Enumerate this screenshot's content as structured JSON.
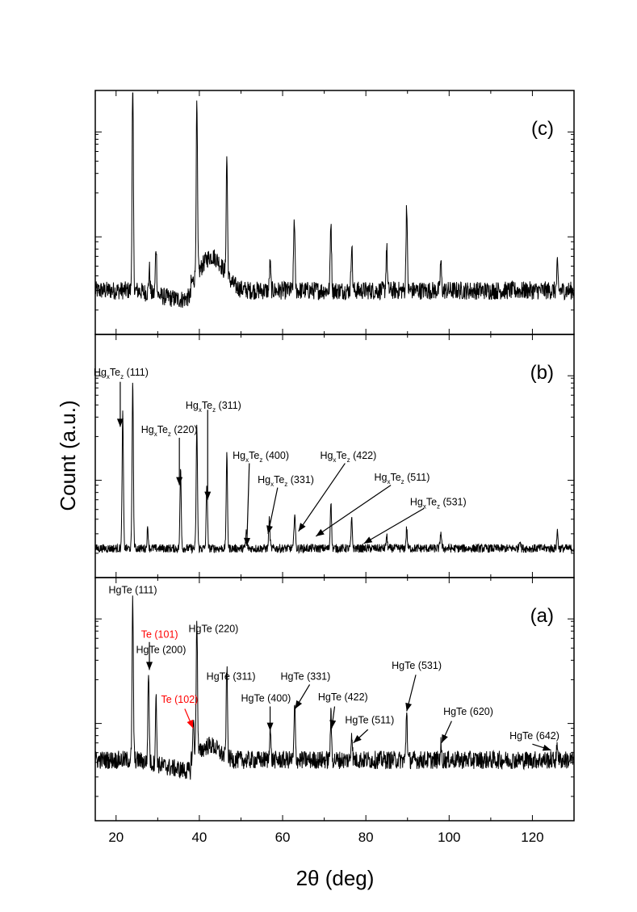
{
  "chart_data": {
    "type": "line",
    "title": "",
    "xlabel": "2θ (deg)",
    "ylabel": "Count (a.u.)",
    "xlim": [
      15,
      130
    ],
    "x_ticks": [
      20,
      40,
      60,
      80,
      100,
      120
    ],
    "x_tick_labels": [
      "20",
      "40",
      "60",
      "80",
      "100",
      "120"
    ],
    "panels": [
      {
        "id": "c",
        "label": "(c)",
        "baseline": 0.18,
        "peaks": [
          {
            "x": 24.0,
            "h": 0.9
          },
          {
            "x": 28.0,
            "h": 0.1
          },
          {
            "x": 29.6,
            "h": 0.2
          },
          {
            "x": 39.4,
            "h": 0.7
          },
          {
            "x": 46.6,
            "h": 0.49
          },
          {
            "x": 57.0,
            "h": 0.11
          },
          {
            "x": 62.8,
            "h": 0.3
          },
          {
            "x": 71.6,
            "h": 0.29
          },
          {
            "x": 76.6,
            "h": 0.2
          },
          {
            "x": 85.0,
            "h": 0.18
          },
          {
            "x": 89.8,
            "h": 0.36
          },
          {
            "x": 98.0,
            "h": 0.12
          },
          {
            "x": 126.0,
            "h": 0.1
          }
        ],
        "humps": [
          {
            "x": 43.0,
            "h": 0.14,
            "w": 4.0
          }
        ],
        "labels": [],
        "arrows": []
      },
      {
        "id": "b",
        "label": "(b)",
        "baseline": 0.12,
        "peaks": [
          {
            "x": 21.6,
            "h": 0.55
          },
          {
            "x": 24.0,
            "h": 0.7
          },
          {
            "x": 27.6,
            "h": 0.08
          },
          {
            "x": 35.5,
            "h": 0.33
          },
          {
            "x": 39.4,
            "h": 0.5
          },
          {
            "x": 41.8,
            "h": 0.27
          },
          {
            "x": 46.6,
            "h": 0.38
          },
          {
            "x": 51.3,
            "h": 0.07
          },
          {
            "x": 56.8,
            "h": 0.12
          },
          {
            "x": 62.9,
            "h": 0.15
          },
          {
            "x": 71.6,
            "h": 0.2
          },
          {
            "x": 76.6,
            "h": 0.12
          },
          {
            "x": 85.0,
            "h": 0.05
          },
          {
            "x": 89.8,
            "h": 0.08
          },
          {
            "x": 98.0,
            "h": 0.07
          },
          {
            "x": 117.0,
            "h": 0.04
          },
          {
            "x": 126.0,
            "h": 0.07
          }
        ],
        "humps": [],
        "labels": [
          {
            "text": "Hg",
            "sub1": "x",
            "mid": "Te",
            "sub2": "z",
            "tail": " (111)",
            "x": 14.6,
            "y": 0.83
          },
          {
            "text": "Hg",
            "sub1": "x",
            "mid": "Te",
            "sub2": "z",
            "tail": " (220)",
            "x": 26.0,
            "y": 0.595
          },
          {
            "text": "Hg",
            "sub1": "x",
            "mid": "Te",
            "sub2": "z",
            "tail": " (311)",
            "x": 36.7,
            "y": 0.695
          },
          {
            "text": "Hg",
            "sub1": "x",
            "mid": "Te",
            "sub2": "z",
            "tail": " (400)",
            "x": 48.0,
            "y": 0.488
          },
          {
            "text": "Hg",
            "sub1": "x",
            "mid": "Te",
            "sub2": "z",
            "tail": " (331)",
            "x": 54.0,
            "y": 0.388
          },
          {
            "text": "Hg",
            "sub1": "x",
            "mid": "Te",
            "sub2": "z",
            "tail": " (422)",
            "x": 69.0,
            "y": 0.488
          },
          {
            "text": "Hg",
            "sub1": "x",
            "mid": "Te",
            "sub2": "z",
            "tail": " (511)",
            "x": 82.0,
            "y": 0.398
          },
          {
            "text": "Hg",
            "sub1": "x",
            "mid": "Te",
            "sub2": "z",
            "tail": " (531)",
            "x": 90.6,
            "y": 0.298
          }
        ],
        "arrows": [
          {
            "x1": 21.0,
            "y1": 0.805,
            "x2": 21.0,
            "y2": 0.62,
            "color": "#000000"
          },
          {
            "x1": 35.2,
            "y1": 0.575,
            "x2": 35.2,
            "y2": 0.38,
            "color": "#000000"
          },
          {
            "x1": 42.0,
            "y1": 0.69,
            "x2": 42.0,
            "y2": 0.32,
            "color": "#000000"
          },
          {
            "x1": 52.0,
            "y1": 0.47,
            "x2": 51.4,
            "y2": 0.13,
            "color": "#000000"
          },
          {
            "x1": 58.8,
            "y1": 0.37,
            "x2": 56.5,
            "y2": 0.18,
            "color": "#000000"
          },
          {
            "x1": 75.0,
            "y1": 0.47,
            "x2": 63.8,
            "y2": 0.19,
            "color": "#000000"
          },
          {
            "x1": 86.0,
            "y1": 0.38,
            "x2": 68.0,
            "y2": 0.17,
            "color": "#000000"
          },
          {
            "x1": 94.0,
            "y1": 0.285,
            "x2": 79.5,
            "y2": 0.14,
            "color": "#000000"
          }
        ]
      },
      {
        "id": "a",
        "label": "(a)",
        "baseline": 0.25,
        "peaks": [
          {
            "x": 24.0,
            "h": 0.67
          },
          {
            "x": 27.8,
            "h": 0.37
          },
          {
            "x": 29.6,
            "h": 0.27
          },
          {
            "x": 38.6,
            "h": 0.15
          },
          {
            "x": 39.4,
            "h": 0.57
          },
          {
            "x": 46.6,
            "h": 0.37
          },
          {
            "x": 57.0,
            "h": 0.14
          },
          {
            "x": 62.9,
            "h": 0.22
          },
          {
            "x": 71.6,
            "h": 0.18
          },
          {
            "x": 76.6,
            "h": 0.12
          },
          {
            "x": 89.8,
            "h": 0.21
          },
          {
            "x": 98.0,
            "h": 0.06
          },
          {
            "x": 126.0,
            "h": 0.07
          }
        ],
        "humps": [
          {
            "x": 42.5,
            "h": 0.06,
            "w": 3.0
          }
        ],
        "labels": [
          {
            "text": "HgTe (111)",
            "x": 18.2,
            "y": 0.935,
            "color": "#000000"
          },
          {
            "text": "Te (101)",
            "x": 26.0,
            "y": 0.752,
            "color": "#ff0000"
          },
          {
            "text": "HgTe (200)",
            "x": 24.8,
            "y": 0.69,
            "color": "#000000"
          },
          {
            "text": "HgTe (220)",
            "x": 37.4,
            "y": 0.775,
            "color": "#000000"
          },
          {
            "text": "Te (102)",
            "x": 30.8,
            "y": 0.485,
            "color": "#ff0000"
          },
          {
            "text": "HgTe (311)",
            "x": 41.7,
            "y": 0.58,
            "color": "#000000"
          },
          {
            "text": "HgTe (400)",
            "x": 50.0,
            "y": 0.49,
            "color": "#000000"
          },
          {
            "text": "HgTe (331)",
            "x": 59.5,
            "y": 0.58,
            "color": "#000000"
          },
          {
            "text": "HgTe (422)",
            "x": 68.5,
            "y": 0.495,
            "color": "#000000"
          },
          {
            "text": "HgTe (511)",
            "x": 75.0,
            "y": 0.4,
            "color": "#000000"
          },
          {
            "text": "HgTe (531)",
            "x": 86.2,
            "y": 0.625,
            "color": "#000000"
          },
          {
            "text": "HgTe (620)",
            "x": 98.6,
            "y": 0.435,
            "color": "#000000"
          },
          {
            "text": "HgTe (642)",
            "x": 114.5,
            "y": 0.335,
            "color": "#000000"
          }
        ],
        "arrows": [
          {
            "x1": 28.0,
            "y1": 0.735,
            "x2": 28.0,
            "y2": 0.62,
            "color": "#000000"
          },
          {
            "x1": 36.5,
            "y1": 0.46,
            "x2": 38.5,
            "y2": 0.38,
            "color": "#ff0000"
          },
          {
            "x1": 57.0,
            "y1": 0.47,
            "x2": 57.0,
            "y2": 0.37,
            "color": "#000000"
          },
          {
            "x1": 66.5,
            "y1": 0.56,
            "x2": 63.0,
            "y2": 0.46,
            "color": "#000000"
          },
          {
            "x1": 72.5,
            "y1": 0.47,
            "x2": 71.8,
            "y2": 0.38,
            "color": "#000000"
          },
          {
            "x1": 80.5,
            "y1": 0.375,
            "x2": 77.0,
            "y2": 0.32,
            "color": "#000000"
          },
          {
            "x1": 92.0,
            "y1": 0.6,
            "x2": 89.8,
            "y2": 0.45,
            "color": "#000000"
          },
          {
            "x1": 100.6,
            "y1": 0.41,
            "x2": 98.2,
            "y2": 0.32,
            "color": "#000000"
          },
          {
            "x1": 120.0,
            "y1": 0.315,
            "x2": 124.5,
            "y2": 0.29,
            "color": "#000000"
          }
        ]
      }
    ],
    "colors": {
      "trace": "#000000",
      "text": "#000000",
      "highlight": "#ff0000",
      "background": "#ffffff"
    }
  }
}
